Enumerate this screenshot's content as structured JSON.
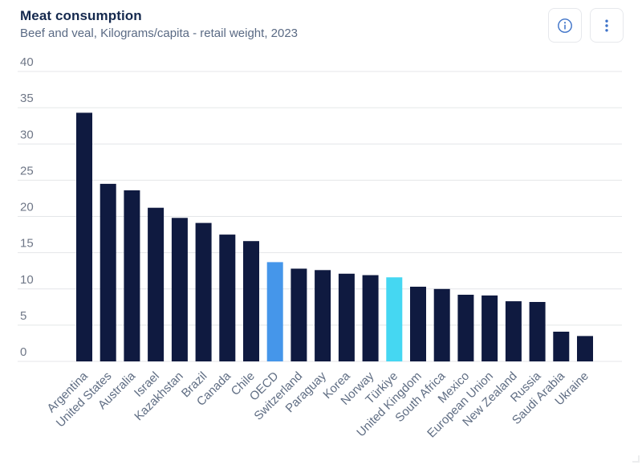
{
  "header": {
    "buttons": [
      {
        "label": "information",
        "icon": "info-circle-icon"
      },
      {
        "label": "more options",
        "icon": "kebab-menu-icon"
      }
    ]
  },
  "colors": {
    "title": "#15294e",
    "subtitle": "#5a6a84",
    "bar_default": "#0f1a40",
    "bar_highlight_oecd": "#4596ea",
    "bar_highlight_turkiye": "#45d7f2",
    "gridline": "#e4e6e8",
    "y_axis_label": "#6f7787",
    "x_axis_label": "#5f6d83",
    "icon_blue": "#3d72c8"
  },
  "chart_data": {
    "type": "bar",
    "title": "Meat consumption",
    "subtitle": "Beef and veal, Kilograms/capita - retail weight, 2023",
    "unit": "Kilograms/capita - retail weight",
    "year": "2023",
    "categories": [
      "Argentina",
      "United States",
      "Australia",
      "Israel",
      "Kazakhstan",
      "Brazil",
      "Canada",
      "Chile",
      "OECD",
      "Switzerland",
      "Paraguay",
      "Korea",
      "Norway",
      "Türkiye",
      "United Kingdom",
      "South Africa",
      "Mexico",
      "European Union",
      "New Zealand",
      "Russia",
      "Saudi Arabia",
      "Ukraine"
    ],
    "values": [
      34.3,
      24.5,
      23.6,
      21.2,
      19.8,
      19.1,
      17.5,
      16.6,
      13.7,
      12.8,
      12.6,
      12.1,
      11.9,
      11.6,
      10.3,
      10.0,
      9.2,
      9.1,
      8.3,
      8.2,
      4.1,
      3.5
    ],
    "highlighted_bars": {
      "8": "#4596ea",
      "13": "#45d7f2"
    },
    "xlabel": "",
    "ylabel": "",
    "ylim": [
      0,
      40
    ],
    "yticks": [
      0,
      5,
      10,
      15,
      20,
      25,
      30,
      35,
      40
    ],
    "grid": true,
    "legend": false,
    "x_label_rotation": -45
  }
}
